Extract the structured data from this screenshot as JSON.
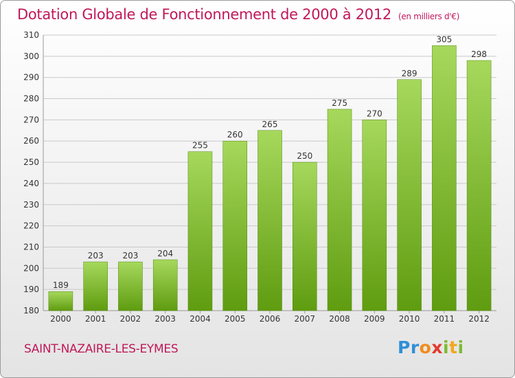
{
  "header": {
    "title": "Dotation Globale de Fonctionnement de 2000 à 2012",
    "unit": "(en milliers d'€)"
  },
  "commune": "SAINT-NAZAIRE-LES-EYMES",
  "logo": {
    "text": "Proxiti",
    "letters": [
      {
        "ch": "P",
        "color": "#2f8fd8"
      },
      {
        "ch": "r",
        "color": "#2f8fd8"
      },
      {
        "ch": "o",
        "color": "#f28b1c"
      },
      {
        "ch": "x",
        "color": "#e23a2e"
      },
      {
        "ch": "i",
        "color": "#7dbb2f"
      },
      {
        "ch": "t",
        "color": "#f2a81c"
      },
      {
        "ch": "i",
        "color": "#7dbb2f"
      }
    ]
  },
  "colors": {
    "accent": "#c0185a",
    "bar_light": "#a2d457",
    "bar_dark": "#5f9c10",
    "grid": "#c9c9c9",
    "axis_text": "#333333"
  },
  "chart_data": {
    "type": "bar",
    "title": "Dotation Globale de Fonctionnement de 2000 à 2012",
    "subtitle": "(en milliers d'€)",
    "xlabel": "",
    "ylabel": "",
    "categories": [
      "2000",
      "2001",
      "2002",
      "2003",
      "2004",
      "2005",
      "2006",
      "2007",
      "2008",
      "2009",
      "2010",
      "2011",
      "2012"
    ],
    "values": [
      189,
      203,
      203,
      204,
      255,
      260,
      265,
      250,
      275,
      270,
      289,
      305,
      298
    ],
    "ylim": [
      180,
      310
    ],
    "yticks": [
      180,
      190,
      200,
      210,
      220,
      230,
      240,
      250,
      260,
      270,
      280,
      290,
      300,
      310
    ],
    "grid": true,
    "data_labels": true
  }
}
